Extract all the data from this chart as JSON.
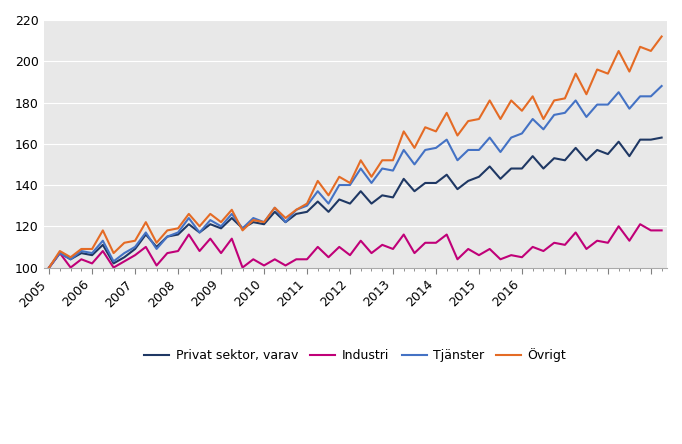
{
  "ylim": [
    100,
    220
  ],
  "yticks": [
    100,
    120,
    140,
    160,
    180,
    200,
    220
  ],
  "plot_bg_color": "#e8e8e8",
  "colors": {
    "privat": "#1f3864",
    "industri": "#c00078",
    "tjanster": "#4472c4",
    "ovrigt": "#e46b25"
  },
  "legend_labels": [
    "Privat sektor, varav",
    "Industri",
    "Tjänster",
    "Övrigt"
  ],
  "x_tick_labels": [
    "2005",
    "2006",
    "2007",
    "2008",
    "2009",
    "2010",
    "2011",
    "2012",
    "2013",
    "2014",
    "2015",
    "2016"
  ],
  "privat_sektor": [
    100,
    107,
    104,
    107,
    106,
    111,
    102,
    105,
    109,
    116,
    110,
    115,
    116,
    121,
    117,
    121,
    119,
    124,
    119,
    122,
    121,
    127,
    122,
    126,
    127,
    132,
    127,
    133,
    131,
    137,
    131,
    135,
    134,
    143,
    137,
    141,
    141,
    145,
    138,
    142,
    144,
    149,
    143,
    148,
    148,
    154,
    148,
    153,
    152,
    158,
    152,
    157,
    155,
    161,
    154,
    162,
    162,
    163
  ],
  "industri": [
    100,
    107,
    100,
    104,
    102,
    108,
    100,
    103,
    106,
    110,
    101,
    107,
    108,
    116,
    108,
    114,
    107,
    114,
    100,
    104,
    101,
    104,
    101,
    104,
    104,
    110,
    105,
    110,
    106,
    113,
    107,
    111,
    109,
    116,
    107,
    112,
    112,
    116,
    104,
    109,
    106,
    109,
    104,
    106,
    105,
    110,
    108,
    112,
    111,
    117,
    109,
    113,
    112,
    120,
    113,
    121,
    118,
    118
  ],
  "tjanster": [
    100,
    107,
    104,
    108,
    107,
    113,
    103,
    107,
    110,
    117,
    109,
    115,
    117,
    124,
    117,
    123,
    120,
    126,
    119,
    124,
    122,
    129,
    122,
    128,
    130,
    137,
    131,
    140,
    140,
    148,
    141,
    148,
    147,
    157,
    150,
    157,
    158,
    162,
    152,
    157,
    157,
    163,
    156,
    163,
    165,
    172,
    167,
    174,
    175,
    181,
    173,
    179,
    179,
    185,
    177,
    183,
    183,
    188
  ],
  "ovrigt": [
    100,
    108,
    105,
    109,
    109,
    118,
    107,
    112,
    113,
    122,
    112,
    118,
    119,
    126,
    120,
    126,
    122,
    128,
    118,
    123,
    122,
    129,
    124,
    128,
    131,
    142,
    135,
    144,
    141,
    152,
    144,
    152,
    152,
    166,
    158,
    168,
    166,
    175,
    164,
    171,
    172,
    181,
    172,
    181,
    176,
    183,
    172,
    181,
    182,
    194,
    184,
    196,
    194,
    205,
    195,
    207,
    205,
    212
  ]
}
